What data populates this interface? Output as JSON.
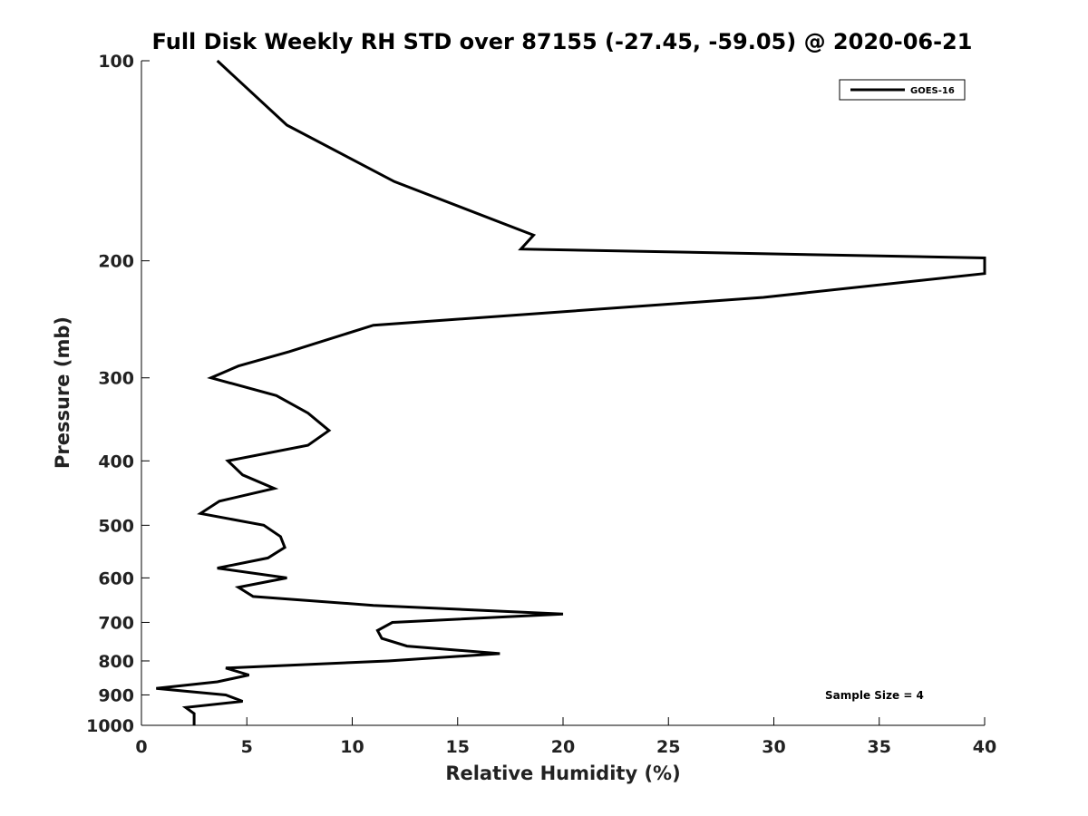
{
  "chart_data": {
    "type": "line",
    "title": "Full Disk Weekly RH STD over 87155 (-27.45, -59.05) @ 2020-06-21",
    "xlabel": "Relative Humidity (%)",
    "ylabel": "Pressure (mb)",
    "xlim": [
      0,
      40
    ],
    "ylim": [
      100,
      1000
    ],
    "yscale": "log",
    "y_reversed": true,
    "x_ticks": [
      0,
      5,
      10,
      15,
      20,
      25,
      30,
      35,
      40
    ],
    "y_ticks": [
      100,
      200,
      300,
      400,
      500,
      600,
      700,
      800,
      900,
      1000
    ],
    "grid": false,
    "legend_position": "top-right",
    "series": [
      {
        "name": "GOES-16",
        "color": "#000000",
        "points": [
          [
            3.6,
            100
          ],
          [
            6.9,
            125
          ],
          [
            12.0,
            152
          ],
          [
            18.6,
            183
          ],
          [
            18.0,
            192
          ],
          [
            40.0,
            198
          ],
          [
            40.0,
            209
          ],
          [
            29.5,
            227
          ],
          [
            11.0,
            250
          ],
          [
            7.0,
            274
          ],
          [
            4.6,
            288
          ],
          [
            3.3,
            300
          ],
          [
            6.4,
            319
          ],
          [
            7.9,
            339
          ],
          [
            8.9,
            360
          ],
          [
            7.9,
            379
          ],
          [
            4.1,
            400
          ],
          [
            4.8,
            420
          ],
          [
            6.3,
            440
          ],
          [
            3.7,
            460
          ],
          [
            2.8,
            480
          ],
          [
            5.8,
            500
          ],
          [
            6.6,
            520
          ],
          [
            6.8,
            540
          ],
          [
            6.0,
            560
          ],
          [
            3.6,
            580
          ],
          [
            6.9,
            600
          ],
          [
            4.6,
            620
          ],
          [
            5.3,
            640
          ],
          [
            11.0,
            660
          ],
          [
            20.0,
            680
          ],
          [
            11.9,
            700
          ],
          [
            11.2,
            720
          ],
          [
            11.4,
            740
          ],
          [
            12.6,
            760
          ],
          [
            17.0,
            780
          ],
          [
            11.7,
            800
          ],
          [
            4.0,
            820
          ],
          [
            5.1,
            840
          ],
          [
            3.6,
            860
          ],
          [
            0.7,
            880
          ],
          [
            4.0,
            900
          ],
          [
            4.8,
            920
          ],
          [
            2.1,
            940
          ],
          [
            2.5,
            960
          ],
          [
            2.5,
            980
          ],
          [
            2.5,
            1000
          ]
        ]
      }
    ],
    "annotations": [
      "Sample Size = 4"
    ]
  }
}
